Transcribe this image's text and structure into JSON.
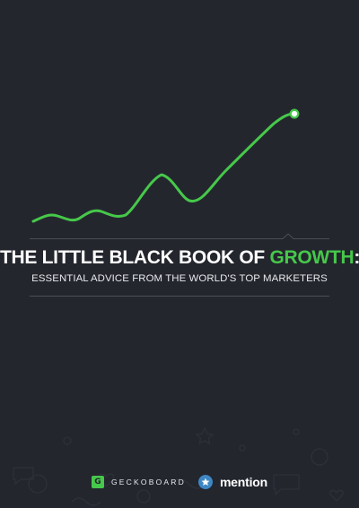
{
  "cover": {
    "title_pre": "THE LITTLE BLACK BOOK OF ",
    "title_accent": "GROWTH",
    "title_post": ":",
    "subtitle": "ESSENTIAL ADVICE FROM THE WORLD'S TOP MARKETERS"
  },
  "footer": {
    "geckoboard_mark": "G",
    "geckoboard_name": "GECKOBOARD",
    "mention_name": "mention"
  },
  "colors": {
    "background": "#24262e",
    "accent": "#46c84a",
    "mention_blue": "#3d87c4"
  },
  "icons": [
    "geckoboard-logo-icon",
    "mention-star-icon",
    "end-point-icon"
  ]
}
